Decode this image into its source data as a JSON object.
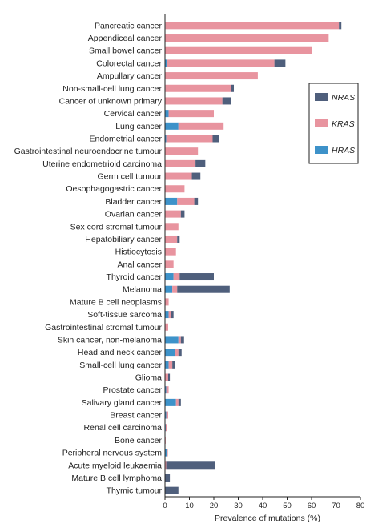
{
  "chart_data": {
    "type": "bar",
    "orientation": "horizontal",
    "stacked": true,
    "xlabel": "Prevalence of mutations (%)",
    "ylabel": "",
    "xlim": [
      0,
      80
    ],
    "xticks": [
      "0",
      "10",
      "20",
      "30",
      "40",
      "50",
      "60",
      "70",
      "80"
    ],
    "grid": false,
    "legend_position": "right",
    "legend_order": [
      "NRAS",
      "KRAS",
      "HRAS"
    ],
    "colors": {
      "HRAS": "#3d92c9",
      "KRAS": "#e8949f",
      "NRAS": "#4f5f7c"
    },
    "categories": [
      "Pancreatic cancer",
      "Appendiceal cancer",
      "Small bowel cancer",
      "Colorectal cancer",
      "Ampullary cancer",
      "Non-small-cell lung cancer",
      "Cancer of unknown primary",
      "Cervical cancer",
      "Lung cancer",
      "Endometrial cancer",
      "Gastrointestinal neuroendocrine tumour",
      "Uterine endometrioid carcinoma",
      "Germ cell tumour",
      "Oesophagogastric cancer",
      "Bladder cancer",
      "Ovarian cancer",
      "Sex cord stromal tumour",
      "Hepatobiliary cancer",
      "Histiocytosis",
      "Anal cancer",
      "Thyroid cancer",
      "Melanoma",
      "Mature B cell neoplasms",
      "Soft-tissue sarcoma",
      "Gastrointestinal stromal tumour",
      "Skin cancer, non-melanoma",
      "Head and neck cancer",
      "Small-cell lung cancer",
      "Glioma",
      "Prostate cancer",
      "Salivary gland cancer",
      "Breast cancer",
      "Renal cell carcinoma",
      "Bone cancer",
      "Peripheral nervous system",
      "Acute myeloid leukaemia",
      "Mature B cell lymphoma",
      "Thymic tumour"
    ],
    "series": [
      {
        "name": "HRAS",
        "values": [
          0.2,
          0,
          0,
          0.8,
          0,
          0.2,
          0,
          1.5,
          5.5,
          0.5,
          0,
          0,
          0,
          0,
          5,
          0,
          0,
          0,
          0,
          0,
          3.5,
          3,
          0,
          1.5,
          0,
          5.5,
          4,
          1.5,
          0,
          0.5,
          4.5,
          0.5,
          0.3,
          0,
          1,
          0,
          0,
          0
        ]
      },
      {
        "name": "KRAS",
        "values": [
          71,
          67,
          60,
          44,
          38,
          27,
          23.5,
          18.5,
          18.5,
          19,
          13.5,
          12.5,
          11,
          8,
          7,
          6.5,
          5.5,
          5,
          4.5,
          3.5,
          2.5,
          2,
          1.5,
          1,
          1.3,
          1,
          1.5,
          1.5,
          1.3,
          1,
          1,
          0.8,
          0.5,
          0.3,
          0.2,
          0.5,
          0,
          0
        ]
      },
      {
        "name": "NRAS",
        "values": [
          1,
          0,
          0,
          4.5,
          0,
          1,
          3.5,
          0,
          0,
          2.5,
          0,
          4,
          3.5,
          0,
          1.5,
          1.5,
          0,
          1,
          0,
          0,
          14,
          21.5,
          0,
          1,
          0,
          1.3,
          1.3,
          1,
          0.7,
          0,
          1,
          0,
          0,
          0,
          0,
          20,
          2,
          5.5
        ]
      }
    ]
  }
}
